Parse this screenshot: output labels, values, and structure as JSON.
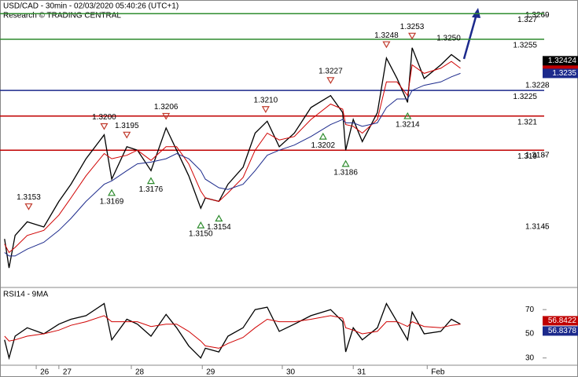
{
  "chart_data": [
    {
      "type": "line",
      "title": "USD/CAD - 30min - 02/03/2020 05:40:26 (UTC+1)",
      "subtitle": "Research © TRADING CENTRAL",
      "xlim": [
        0,
        336
      ],
      "x": [
        3,
        6,
        10,
        18,
        29,
        39,
        47,
        57,
        69,
        74,
        84,
        91,
        100,
        110,
        117,
        125,
        133,
        136,
        145,
        151,
        161,
        169,
        177,
        185,
        195,
        206,
        219,
        227,
        229,
        234,
        240,
        250,
        256,
        263,
        270,
        273,
        281,
        292,
        299,
        305
      ],
      "series": [
        {
          "color": "#000000",
          "values": [
            1.3138,
            1.3121,
            1.314,
            1.3148,
            1.3145,
            1.316,
            1.317,
            1.3185,
            1.3199,
            1.3173,
            1.3192,
            1.319,
            1.3178,
            1.3203,
            1.319,
            1.3175,
            1.3156,
            1.3162,
            1.316,
            1.317,
            1.318,
            1.32,
            1.3207,
            1.3192,
            1.32,
            1.3215,
            1.3222,
            1.3212,
            1.319,
            1.3208,
            1.3195,
            1.3212,
            1.3244,
            1.3232,
            1.3218,
            1.325,
            1.3232,
            1.324,
            1.3246,
            1.3242
          ]
        },
        {
          "color": "#d00000",
          "values": [
            1.3135,
            1.313,
            1.3133,
            1.314,
            1.3143,
            1.3152,
            1.3162,
            1.3175,
            1.3188,
            1.3185,
            1.3187,
            1.319,
            1.3184,
            1.3192,
            1.3192,
            1.3182,
            1.3166,
            1.3162,
            1.316,
            1.3165,
            1.3174,
            1.319,
            1.32,
            1.3196,
            1.3198,
            1.3208,
            1.3217,
            1.3214,
            1.3205,
            1.3204,
            1.32,
            1.3208,
            1.323,
            1.323,
            1.3222,
            1.324,
            1.3235,
            1.3238,
            1.3242,
            1.3238
          ]
        },
        {
          "color": "#1c2a8c",
          "values": [
            1.313,
            1.3128,
            1.3128,
            1.3132,
            1.3136,
            1.3143,
            1.315,
            1.316,
            1.317,
            1.3172,
            1.3178,
            1.3182,
            1.3183,
            1.3185,
            1.3188,
            1.3185,
            1.3178,
            1.3173,
            1.3168,
            1.3167,
            1.317,
            1.3178,
            1.3187,
            1.319,
            1.3193,
            1.3198,
            1.3205,
            1.3208,
            1.3206,
            1.3206,
            1.3204,
            1.3206,
            1.3215,
            1.322,
            1.322,
            1.3225,
            1.3228,
            1.323,
            1.3233,
            1.3235
          ]
        }
      ],
      "ylim": [
        1.311,
        1.3278
      ],
      "yticks": [
        1.3269,
        1.3228,
        1.3187,
        1.3145
      ],
      "levels": [
        {
          "value": 1.327,
          "color": "#2e8b2e"
        },
        {
          "value": 1.3255,
          "color": "#2e8b2e"
        },
        {
          "value": 1.3225,
          "color": "#1c2a8c"
        },
        {
          "value": 1.321,
          "color": "#c00000"
        },
        {
          "value": 1.319,
          "color": "#c00000"
        }
      ],
      "peaks": {
        "x": [
          19,
          69,
          84,
          110,
          176,
          219,
          256,
          273
        ],
        "values": [
          1.3153,
          1.32,
          1.3195,
          1.3206,
          1.321,
          1.3227,
          1.3248,
          1.3253
        ],
        "value_labels": [
          "1.3153",
          "1.3200",
          "1.3195",
          "1.3206",
          "1.3210",
          "1.3227",
          "1.3248",
          "1.3253"
        ],
        "color": "#c0392b"
      },
      "troughs": {
        "x": [
          74,
          100,
          133,
          145,
          214,
          229,
          270
        ],
        "values": [
          1.3169,
          1.3176,
          1.315,
          1.3154,
          1.3202,
          1.3186,
          1.3214
        ],
        "value_labels": [
          "1.3169",
          "1.3176",
          "1.3150",
          "1.3154",
          "1.3202",
          "1.3186",
          "1.3214"
        ],
        "color": "#2e8b2e"
      },
      "annotations": {
        "x": [
          305
        ],
        "values": [
          1.325
        ],
        "value_labels": [
          "1.3250"
        ]
      },
      "price_tags": [
        {
          "value": 1.32424,
          "color": "#000000"
        },
        {
          "value": 1.3235,
          "color": "#1c2a8c"
        }
      ]
    },
    {
      "type": "line",
      "title": "RSI14 - 9MA",
      "xlim": [
        0,
        336
      ],
      "x": [
        3,
        6,
        10,
        18,
        29,
        39,
        47,
        57,
        69,
        74,
        84,
        91,
        100,
        110,
        117,
        125,
        133,
        136,
        145,
        151,
        161,
        169,
        177,
        185,
        195,
        206,
        219,
        227,
        229,
        234,
        240,
        250,
        256,
        263,
        270,
        273,
        281,
        292,
        299,
        305
      ],
      "series": [
        {
          "color": "#000000",
          "values": [
            45,
            30,
            48,
            55,
            50,
            58,
            62,
            65,
            75,
            45,
            62,
            58,
            48,
            66,
            55,
            40,
            30,
            38,
            35,
            48,
            55,
            70,
            72,
            52,
            58,
            65,
            70,
            60,
            35,
            55,
            45,
            55,
            75,
            60,
            45,
            68,
            50,
            52,
            62,
            58
          ]
        },
        {
          "color": "#d00000",
          "values": [
            48,
            44,
            45,
            48,
            50,
            53,
            57,
            60,
            65,
            60,
            60,
            60,
            56,
            58,
            58,
            52,
            44,
            40,
            38,
            42,
            47,
            55,
            62,
            60,
            60,
            62,
            65,
            63,
            55,
            53,
            50,
            52,
            60,
            60,
            56,
            60,
            56,
            55,
            57,
            58
          ]
        }
      ],
      "ylim": [
        24,
        87
      ],
      "yticks": [
        70,
        50,
        30
      ],
      "xticks": [
        {
          "value": 24,
          "label": "26"
        },
        {
          "value": 39,
          "label": "27"
        },
        {
          "value": 87,
          "label": "28"
        },
        {
          "value": 134,
          "label": "29"
        },
        {
          "value": 187,
          "label": "30"
        },
        {
          "value": 234,
          "label": "31"
        },
        {
          "value": 283,
          "label": "Feb"
        }
      ],
      "price_tags": [
        {
          "value": 56.8422,
          "color": "#c00000"
        },
        {
          "value": 56.8378,
          "color": "#1c2a8c"
        }
      ]
    }
  ]
}
